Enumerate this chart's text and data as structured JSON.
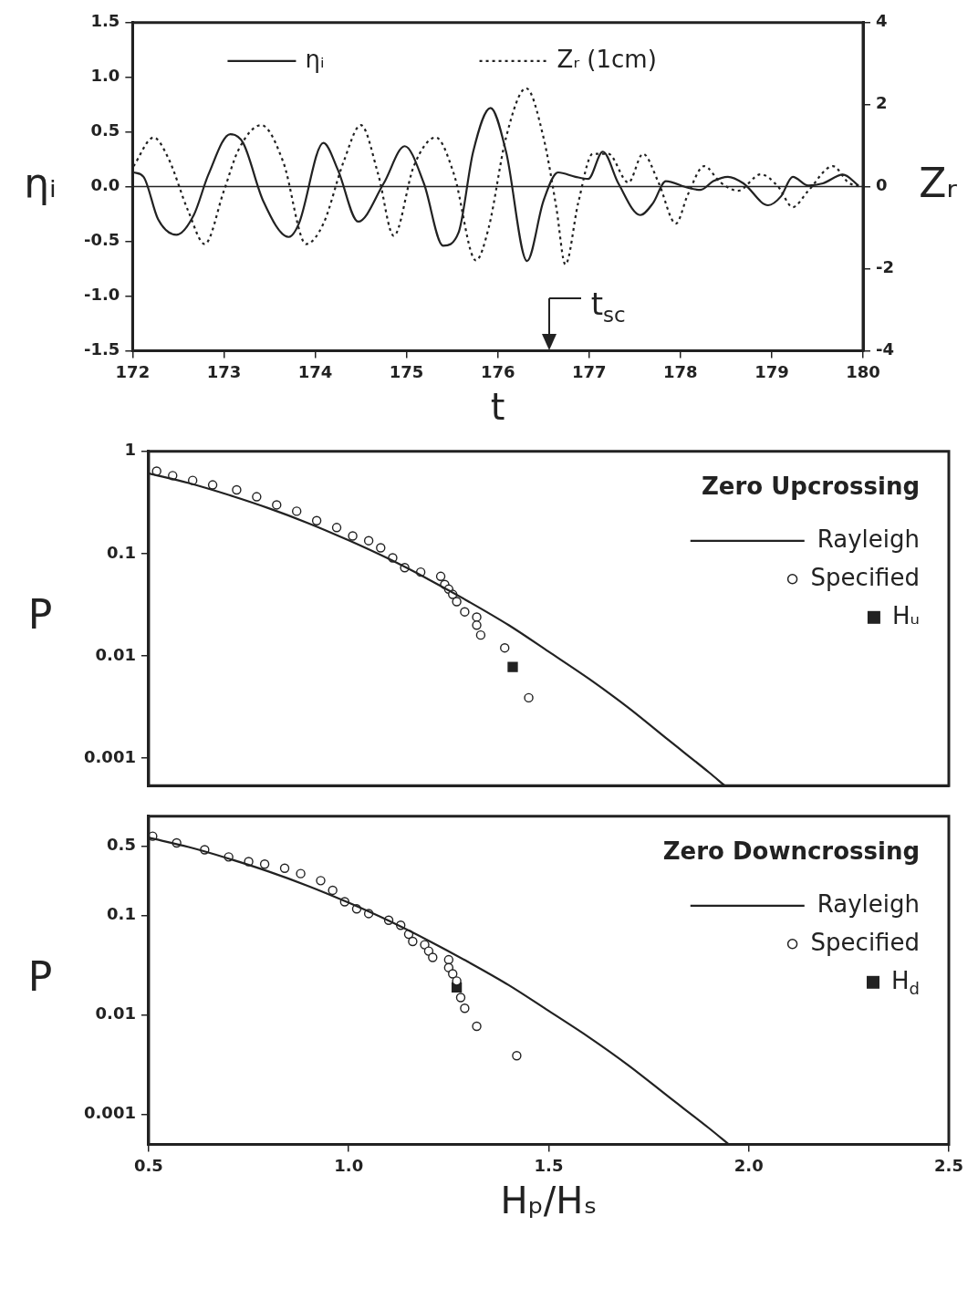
{
  "chart_data": [
    {
      "type": "line",
      "xlabel": "t",
      "ylabel": "ηᵢ",
      "y2label": "Zᵣ",
      "xlim": [
        172,
        180
      ],
      "xticks": [
        172,
        173,
        174,
        175,
        176,
        177,
        178,
        179,
        180
      ],
      "ylim": [
        -1.5,
        1.5
      ],
      "yticks": [
        -1.5,
        {
          "value": -1,
          "label": "-1.0"
        },
        -0.5,
        {
          "value": 0,
          "label": "0.0"
        },
        0.5,
        {
          "value": 1,
          "label": "1.0"
        },
        1.5
      ],
      "y2lim": [
        -4,
        4
      ],
      "y2ticks": [
        -4,
        -2,
        0,
        2,
        4
      ],
      "grid": false,
      "legend": "top",
      "marker": "none",
      "ref_lines": [
        {
          "axis": "y",
          "value": 0
        }
      ],
      "annotations": [
        "t$_{sc}$"
      ],
      "series": [
        {
          "name": "ηᵢ",
          "color": "#222222",
          "x": [
            172.01,
            172.12,
            172.28,
            172.48,
            172.67,
            172.83,
            173.07,
            173.21,
            173.43,
            173.71,
            173.82,
            174.09,
            174.25,
            174.47,
            174.75,
            174.98,
            175.19,
            175.4,
            175.57,
            175.73,
            175.92,
            176.09,
            176.32,
            176.5,
            176.66,
            176.85,
            176.99,
            177.15,
            177.32,
            177.56,
            177.7,
            177.84,
            178.08,
            178.22,
            178.36,
            178.52,
            178.69,
            178.96,
            179.1,
            179.23,
            179.4,
            179.56,
            179.78,
            179.95
          ],
          "values": [
            0.13,
            0.09,
            -0.3,
            -0.44,
            -0.26,
            0.11,
            0.48,
            0.4,
            -0.13,
            -0.46,
            -0.34,
            0.4,
            0.15,
            -0.32,
            0.03,
            0.37,
            0.03,
            -0.54,
            -0.42,
            0.32,
            0.72,
            0.32,
            -0.68,
            -0.13,
            0.13,
            0.09,
            0.07,
            0.32,
            0.03,
            -0.26,
            -0.15,
            0.05,
            -0.01,
            -0.03,
            0.05,
            0.09,
            0.03,
            -0.17,
            -0.09,
            0.09,
            0.01,
            0.03,
            0.11,
            0.01
          ]
        },
        {
          "name": "Zᵣ (1cm)",
          "color": "#222222",
          "line_style": "dotted",
          "axis": "y2",
          "x": [
            172.01,
            172.23,
            172.39,
            172.61,
            172.79,
            173.0,
            173.16,
            173.41,
            173.65,
            173.9,
            174.09,
            174.31,
            174.5,
            174.69,
            174.86,
            175.08,
            175.32,
            175.52,
            175.76,
            175.9,
            176.09,
            176.31,
            176.5,
            176.64,
            176.74,
            176.88,
            177.04,
            177.21,
            177.43,
            177.59,
            177.76,
            177.95,
            178.08,
            178.26,
            178.44,
            178.63,
            178.88,
            179.07,
            179.23,
            179.4,
            179.67,
            179.84,
            179.97
          ],
          "values": [
            0.5,
            1.2,
            0.7,
            -0.6,
            -1.4,
            -0.1,
            0.9,
            1.5,
            0.6,
            -1.4,
            -0.9,
            0.6,
            1.5,
            0.3,
            -1.2,
            0.5,
            1.2,
            0.3,
            -1.8,
            -1.0,
            1.2,
            2.4,
            1.2,
            -0.5,
            -1.9,
            -0.4,
            0.8,
            0.8,
            0.1,
            0.8,
            0.1,
            -0.9,
            -0.2,
            0.5,
            0.1,
            -0.1,
            0.3,
            0.0,
            -0.5,
            -0.1,
            0.5,
            0.1,
            0.0
          ]
        }
      ]
    },
    {
      "type": "scatter",
      "ylabel": "P",
      "legend_title": "Zero Upcrossing",
      "legend": "top right",
      "log": "y",
      "grid": false,
      "tick_labels": "y",
      "xlim": [
        0.5,
        2.5
      ],
      "ylim": [
        0.00054,
        1
      ],
      "yticks": [
        0.001,
        0.01,
        0.1,
        1
      ],
      "series": [
        {
          "name": "Rayleigh",
          "type": "line",
          "color": "#222222",
          "x": [
            0.5,
            0.6,
            0.7,
            0.8,
            0.9,
            1.0,
            1.1,
            1.2,
            1.3,
            1.4,
            1.5,
            1.6,
            1.7,
            1.8,
            1.9,
            1.94
          ],
          "values": [
            0.61,
            0.49,
            0.375,
            0.278,
            0.198,
            0.135,
            0.089,
            0.056,
            0.034,
            0.02,
            0.011,
            0.006,
            0.0031,
            0.0015,
            0.00073,
            0.00054
          ]
        },
        {
          "name": "Specified",
          "marker": "circle",
          "color": "#222222",
          "x": [
            0.52,
            0.56,
            0.61,
            0.66,
            0.72,
            0.77,
            0.82,
            0.87,
            0.92,
            0.97,
            1.01,
            1.05,
            1.08,
            1.11,
            1.14,
            1.18,
            1.23,
            1.24,
            1.25,
            1.26,
            1.27,
            1.29,
            1.32,
            1.32,
            1.33,
            1.39,
            1.45
          ],
          "values": [
            0.64,
            0.58,
            0.52,
            0.47,
            0.42,
            0.36,
            0.3,
            0.26,
            0.21,
            0.18,
            0.149,
            0.134,
            0.114,
            0.091,
            0.073,
            0.066,
            0.06,
            0.05,
            0.045,
            0.04,
            0.034,
            0.027,
            0.024,
            0.02,
            0.016,
            0.012,
            0.0039
          ]
        },
        {
          "name": "Hᵤ",
          "marker": "square",
          "color": "#222222",
          "x": [
            1.41
          ],
          "values": [
            0.0078
          ]
        }
      ]
    },
    {
      "type": "scatter",
      "xlabel": "Hₚ/Hₛ",
      "ylabel": "P",
      "legend_title": "Zero Downcrossing",
      "legend": "top right",
      "log": "y",
      "grid": false,
      "xlim": [
        0.5,
        2.5
      ],
      "xticks": [
        0.5,
        {
          "value": 1,
          "label": "1.0"
        },
        1.5,
        {
          "value": 2,
          "label": "2.0"
        },
        2.5
      ],
      "ylim": [
        0.0005,
        1
      ],
      "yticks": [
        0.001,
        0.01,
        0.1,
        0.5
      ],
      "series": [
        {
          "name": "Rayleigh",
          "type": "line",
          "color": "#222222",
          "x": [
            0.5,
            0.6,
            0.7,
            0.8,
            0.9,
            1.0,
            1.1,
            1.2,
            1.3,
            1.4,
            1.5,
            1.6,
            1.7,
            1.8,
            1.9,
            1.95
          ],
          "values": [
            0.61,
            0.49,
            0.375,
            0.278,
            0.198,
            0.135,
            0.089,
            0.056,
            0.034,
            0.02,
            0.011,
            0.006,
            0.0031,
            0.0015,
            0.00073,
            0.0005
          ]
        },
        {
          "name": "Specified",
          "marker": "circle",
          "color": "#222222",
          "x": [
            0.51,
            0.57,
            0.64,
            0.7,
            0.75,
            0.79,
            0.84,
            0.88,
            0.93,
            0.96,
            0.99,
            1.02,
            1.05,
            1.1,
            1.13,
            1.15,
            1.16,
            1.19,
            1.2,
            1.21,
            1.25,
            1.25,
            1.26,
            1.27,
            1.28,
            1.29,
            1.32,
            1.42
          ],
          "values": [
            0.63,
            0.54,
            0.46,
            0.39,
            0.35,
            0.33,
            0.3,
            0.265,
            0.225,
            0.18,
            0.138,
            0.117,
            0.105,
            0.09,
            0.08,
            0.065,
            0.055,
            0.051,
            0.044,
            0.038,
            0.036,
            0.03,
            0.026,
            0.022,
            0.015,
            0.0117,
            0.0077,
            0.0039
          ]
        },
        {
          "name": "H$_{d}$",
          "marker": "square",
          "color": "#222222",
          "x": [
            1.27
          ],
          "values": [
            0.019
          ]
        }
      ]
    }
  ]
}
